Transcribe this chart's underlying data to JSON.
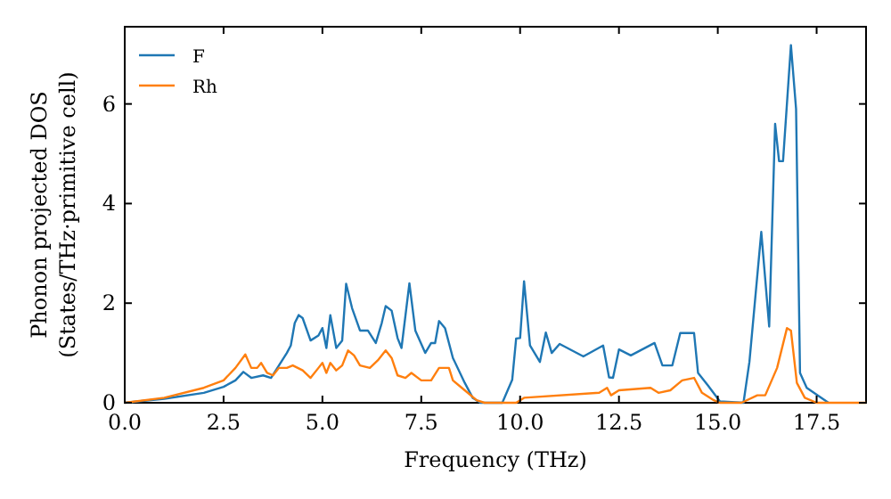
{
  "chart_data": {
    "type": "line",
    "xlabel": "Frequency (THz)",
    "ylabel": "Phonon projected DOS\n(States/THz·primitive cell)",
    "xlim": [
      0,
      18.75
    ],
    "ylim": [
      0,
      7.55
    ],
    "xticks": [
      {
        "value": 0,
        "label": "0.0"
      },
      {
        "value": 2.5,
        "label": "2.5"
      },
      {
        "value": 5,
        "label": "5.0"
      },
      {
        "value": 7.5,
        "label": "7.5"
      },
      {
        "value": 10,
        "label": "10.0"
      },
      {
        "value": 12.5,
        "label": "12.5"
      },
      {
        "value": 15,
        "label": "15.0"
      },
      {
        "value": 17.5,
        "label": "17.5"
      }
    ],
    "yticks": [
      0,
      2,
      4,
      6
    ],
    "legend": "top left",
    "grid": false,
    "line_style": "solid",
    "marker": "none",
    "series": [
      {
        "name": "F",
        "color": "#1f77b4",
        "x": [
          0,
          1,
          2,
          2.5,
          2.8,
          3.0,
          3.2,
          3.5,
          3.7,
          3.9,
          4.1,
          4.2,
          4.3,
          4.4,
          4.5,
          4.7,
          4.9,
          5.0,
          5.1,
          5.2,
          5.35,
          5.5,
          5.6,
          5.75,
          5.95,
          6.15,
          6.35,
          6.5,
          6.6,
          6.75,
          6.9,
          7.0,
          7.2,
          7.35,
          7.6,
          7.75,
          7.85,
          7.95,
          8.1,
          8.3,
          8.6,
          8.8,
          9.0,
          9.55,
          9.8,
          9.9,
          10.0,
          10.1,
          10.25,
          10.5,
          10.65,
          10.8,
          11.0,
          11.6,
          12.1,
          12.25,
          12.35,
          12.5,
          12.8,
          13.4,
          13.6,
          13.85,
          14.05,
          14.4,
          14.5,
          14.75,
          15.05,
          15.65,
          15.8,
          16.1,
          16.3,
          16.45,
          16.55,
          16.65,
          16.85,
          16.98,
          17.08,
          17.25,
          17.8
        ],
        "values": [
          0,
          0.08,
          0.2,
          0.32,
          0.45,
          0.62,
          0.5,
          0.55,
          0.5,
          0.75,
          1.0,
          1.15,
          1.6,
          1.76,
          1.7,
          1.25,
          1.35,
          1.5,
          1.1,
          1.76,
          1.1,
          1.25,
          2.39,
          1.9,
          1.45,
          1.45,
          1.2,
          1.6,
          1.94,
          1.85,
          1.3,
          1.1,
          2.4,
          1.45,
          1.0,
          1.2,
          1.2,
          1.64,
          1.5,
          0.9,
          0.4,
          0.1,
          0,
          0,
          0.46,
          1.29,
          1.3,
          2.44,
          1.15,
          0.82,
          1.41,
          1.0,
          1.18,
          0.93,
          1.15,
          0.51,
          0.5,
          1.07,
          0.95,
          1.2,
          0.75,
          0.75,
          1.4,
          1.4,
          0.6,
          0.35,
          0.03,
          0,
          0.82,
          3.43,
          1.53,
          5.6,
          4.85,
          4.85,
          7.18,
          5.9,
          0.6,
          0.3,
          0
        ]
      },
      {
        "name": "Rh",
        "color": "#ff7f0e",
        "x": [
          0,
          1,
          2,
          2.5,
          2.8,
          3.05,
          3.2,
          3.35,
          3.45,
          3.6,
          3.75,
          3.9,
          4.1,
          4.25,
          4.5,
          4.7,
          4.9,
          5.0,
          5.1,
          5.2,
          5.35,
          5.5,
          5.65,
          5.8,
          5.95,
          6.2,
          6.4,
          6.6,
          6.75,
          6.9,
          7.1,
          7.25,
          7.5,
          7.75,
          7.95,
          8.2,
          8.3,
          8.6,
          8.9,
          9.1,
          9.9,
          10.1,
          12.0,
          12.2,
          12.3,
          12.5,
          13.3,
          13.5,
          13.8,
          14.1,
          14.4,
          14.6,
          14.9,
          15.05,
          15.6,
          16.0,
          16.2,
          16.5,
          16.75,
          16.85,
          17.0,
          17.2,
          17.5,
          18.75
        ],
        "values": [
          0,
          0.1,
          0.3,
          0.45,
          0.7,
          0.97,
          0.7,
          0.7,
          0.8,
          0.6,
          0.55,
          0.7,
          0.7,
          0.75,
          0.65,
          0.5,
          0.7,
          0.8,
          0.6,
          0.8,
          0.65,
          0.75,
          1.05,
          0.95,
          0.75,
          0.7,
          0.85,
          1.05,
          0.9,
          0.55,
          0.5,
          0.6,
          0.45,
          0.45,
          0.7,
          0.7,
          0.45,
          0.25,
          0.05,
          0,
          0,
          0.1,
          0.2,
          0.3,
          0.15,
          0.25,
          0.3,
          0.2,
          0.25,
          0.45,
          0.5,
          0.2,
          0.05,
          0,
          0,
          0.15,
          0.15,
          0.7,
          1.5,
          1.45,
          0.4,
          0.1,
          0,
          0
        ]
      }
    ]
  }
}
